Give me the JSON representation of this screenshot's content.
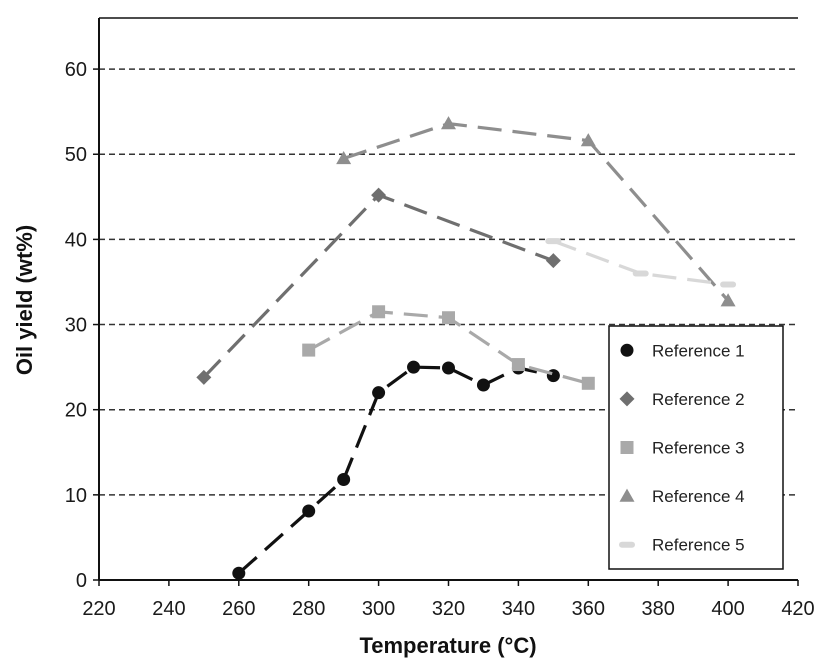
{
  "chart_data": {
    "type": "line",
    "xlabel": "Temperature (°C)",
    "ylabel": "Oil yield (wt%)",
    "xlim": [
      220,
      420
    ],
    "ylim": [
      0,
      66
    ],
    "xticks": [
      220,
      240,
      260,
      280,
      300,
      320,
      340,
      360,
      380,
      400,
      420
    ],
    "yticks": [
      0,
      10,
      20,
      30,
      40,
      50,
      60
    ],
    "xtick_labels": [
      "220",
      "240",
      "260",
      "280",
      "300",
      "320",
      "340",
      "360",
      "380",
      "400",
      "420"
    ],
    "ytick_labels": [
      "0",
      "10",
      "20",
      "30",
      "40",
      "50",
      "60"
    ],
    "grid": "horizontal dashed",
    "legend_position": "bottom-right",
    "series": [
      {
        "name": "Reference 1",
        "marker": "circle",
        "color": "#111111",
        "x": [
          260,
          280,
          290,
          300,
          310,
          320,
          330,
          340,
          350
        ],
        "y": [
          0.8,
          8.1,
          11.8,
          22.0,
          25.0,
          24.9,
          22.9,
          24.9,
          24.0
        ]
      },
      {
        "name": "Reference 2",
        "marker": "diamond",
        "color": "#6f6f6f",
        "x": [
          250,
          300,
          350
        ],
        "y": [
          23.8,
          45.2,
          37.5
        ]
      },
      {
        "name": "Reference 3",
        "marker": "square",
        "color": "#a9a9a9",
        "x": [
          280,
          300,
          320,
          340,
          360
        ],
        "y": [
          27.0,
          31.5,
          30.8,
          25.3,
          23.1
        ]
      },
      {
        "name": "Reference 4",
        "marker": "triangle",
        "color": "#8e8e8e",
        "x": [
          290,
          320,
          360,
          400
        ],
        "y": [
          49.5,
          53.6,
          51.6,
          32.8
        ]
      },
      {
        "name": "Reference 5",
        "marker": "dash",
        "color": "#d8d8d8",
        "x": [
          350,
          375,
          400
        ],
        "y": [
          39.8,
          36.0,
          34.7
        ]
      }
    ]
  }
}
